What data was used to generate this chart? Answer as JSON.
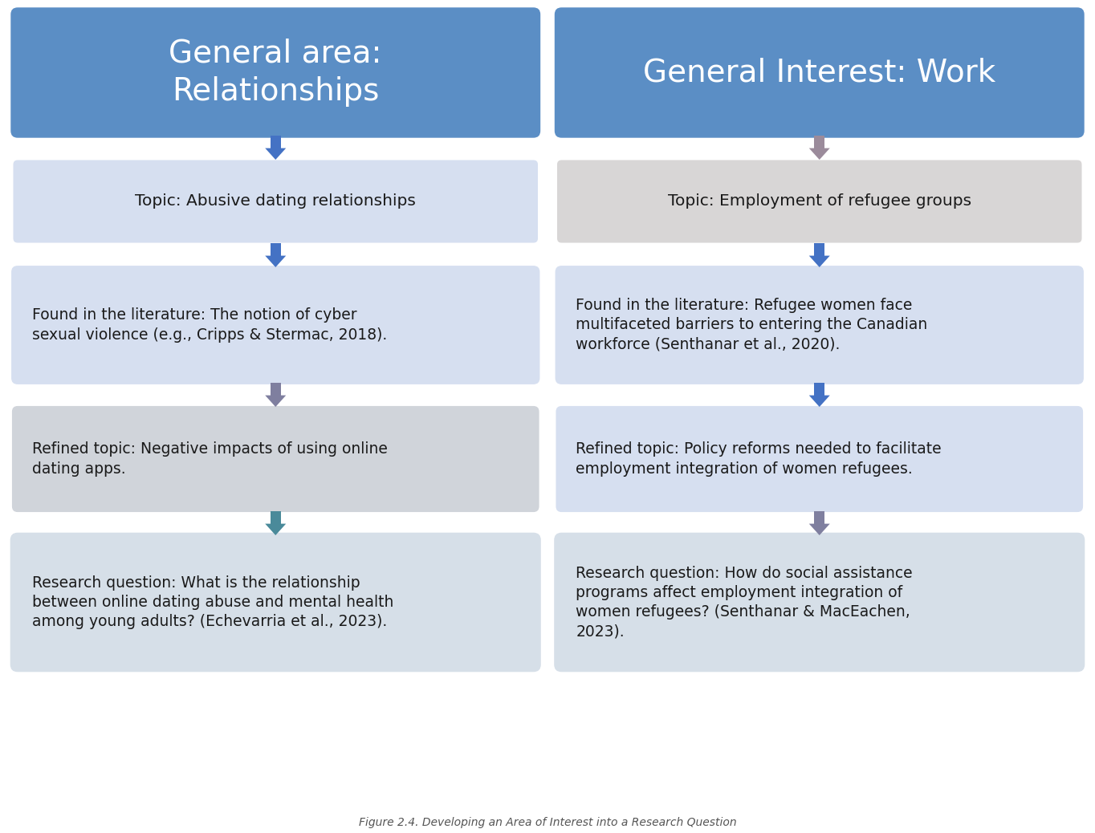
{
  "title": "Figure 2.4. Developing an Area of Interest into a Research Question",
  "left_column": {
    "header_text": "General area:\nRelationships",
    "header_bg": "#5b8ec5",
    "header_text_color": "#ffffff",
    "boxes": [
      {
        "text": "Topic: Abusive dating relationships",
        "bg": "#d6dff0",
        "text_align": "center"
      },
      {
        "text": "Found in the literature: The notion of cyber\nsexual violence (e.g., Cripps & Stermac, 2018).",
        "bg": "#d6dff0",
        "text_align": "left"
      },
      {
        "text": "Refined topic: Negative impacts of using online\ndating apps.",
        "bg": "#d0d4da",
        "text_align": "left"
      },
      {
        "text": "Research question: What is the relationship\nbetween online dating abuse and mental health\namong young adults? (Echevarria et al., 2023).",
        "bg": "#d6dfe8",
        "text_align": "left"
      }
    ],
    "arrow_colors": [
      "#4472c4",
      "#4472c4",
      "#7f7f9f",
      "#4a8a9a"
    ]
  },
  "right_column": {
    "header_text": "General Interest: Work",
    "header_bg": "#5b8ec5",
    "header_text_color": "#ffffff",
    "boxes": [
      {
        "text": "Topic: Employment of refugee groups",
        "bg": "#d8d6d6",
        "text_align": "center"
      },
      {
        "text": "Found in the literature: Refugee women face\nmultifaceted barriers to entering the Canadian\nworkforce (Senthanar et al., 2020).",
        "bg": "#d6dff0",
        "text_align": "left"
      },
      {
        "text": "Refined topic: Policy reforms needed to facilitate\nemployment integration of women refugees.",
        "bg": "#d6dff0",
        "text_align": "left"
      },
      {
        "text": "Research question: How do social assistance\nprograms affect employment integration of\nwomen refugees? (Senthanar & MacEachen,\n2023).",
        "bg": "#d6dfe8",
        "text_align": "left"
      }
    ],
    "arrow_colors": [
      "#9b8b9b",
      "#4472c4",
      "#4472c4",
      "#7f7f9f"
    ]
  },
  "bg_color": "#ffffff",
  "fig_width": 13.64,
  "fig_height": 10.38,
  "dpi": 100
}
